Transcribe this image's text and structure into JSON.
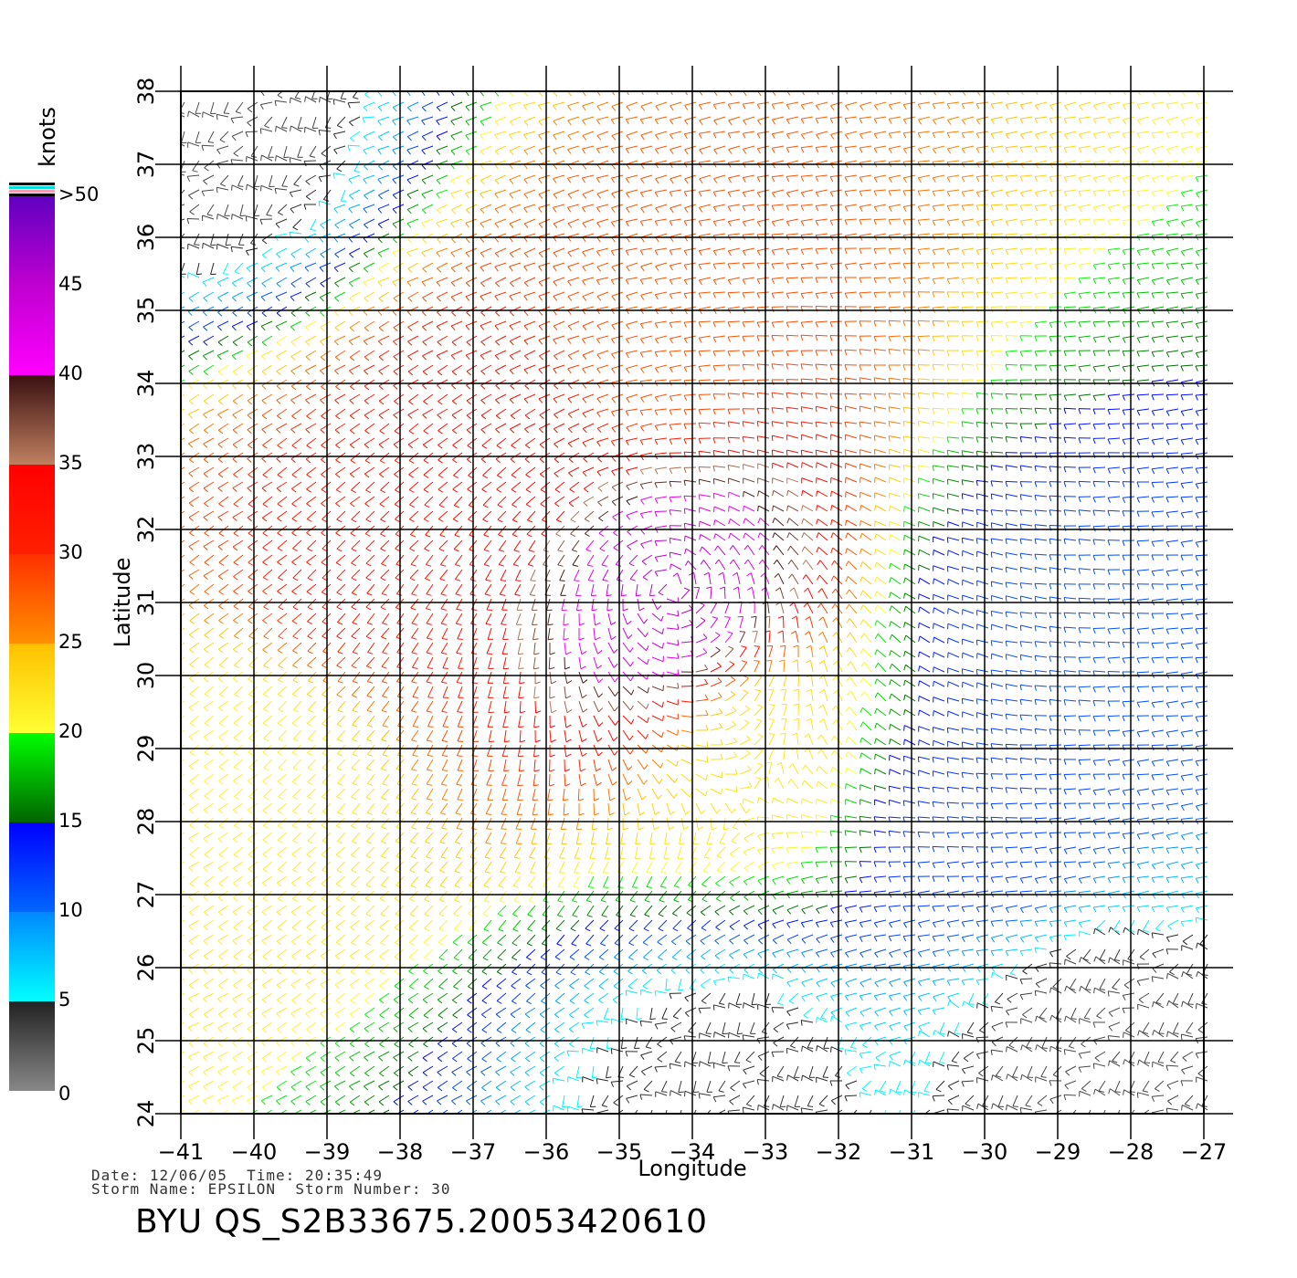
{
  "chart_data": {
    "type": "wind-barb map",
    "title": "",
    "xlabel": "Longitude",
    "ylabel": "Latitude",
    "xlim": [
      -41,
      -27
    ],
    "ylim": [
      24,
      38
    ],
    "x_ticks": [
      "-41",
      "-40",
      "-39",
      "-38",
      "-37",
      "-36",
      "-35",
      "-34",
      "-33",
      "-32",
      "-31",
      "-30",
      "-29",
      "-28",
      "-27"
    ],
    "y_ticks": [
      "24",
      "25",
      "26",
      "27",
      "28",
      "29",
      "30",
      "31",
      "32",
      "33",
      "34",
      "35",
      "36",
      "37",
      "38"
    ],
    "grid": true,
    "colorbar": {
      "unit": "knots",
      "labels": [
        "0",
        "5",
        "10",
        "15",
        "20",
        "25",
        "30",
        "35",
        "40",
        "45",
        ">50"
      ],
      "bins": [
        {
          "from": 0,
          "to": 5,
          "colors": [
            "#888888",
            "#222222"
          ]
        },
        {
          "from": 5,
          "to": 10,
          "colors": [
            "#00ffff",
            "#0088ff"
          ]
        },
        {
          "from": 10,
          "to": 15,
          "colors": [
            "#0066ff",
            "#0000ff"
          ]
        },
        {
          "from": 15,
          "to": 20,
          "colors": [
            "#006400",
            "#00ff00"
          ]
        },
        {
          "from": 20,
          "to": 25,
          "colors": [
            "#ffff33",
            "#ffc000"
          ]
        },
        {
          "from": 25,
          "to": 30,
          "colors": [
            "#ff9000",
            "#ff3000"
          ]
        },
        {
          "from": 30,
          "to": 35,
          "colors": [
            "#ff2000",
            "#ff0000"
          ]
        },
        {
          "from": 35,
          "to": 40,
          "colors": [
            "#c08060",
            "#3a1010"
          ]
        },
        {
          "from": 40,
          "to": 45,
          "colors": [
            "#ff00ff",
            "#c000d0"
          ]
        },
        {
          "from": 45,
          "to": 50,
          "colors": [
            "#c000d0",
            "#6000c0"
          ]
        }
      ]
    },
    "storm_center": {
      "lon": -34.3,
      "lat": 31.2
    },
    "wind_field": [
      {
        "lon": -34.3,
        "lat": 31.2,
        "speed_kt": 45,
        "type": "cyclonic core"
      },
      {
        "lon": -36.5,
        "lat": 33.0,
        "speed_kt": 33,
        "type": "storm ring"
      },
      {
        "lon": -38.5,
        "lat": 31.5,
        "speed_kt": 31,
        "type": "storm ring"
      },
      {
        "lon": -34.5,
        "lat": 34.5,
        "speed_kt": 28,
        "type": "storm ring"
      },
      {
        "lon": -33.0,
        "lat": 28.9,
        "speed_kt": 22,
        "type": "outer band"
      },
      {
        "lon": -40.0,
        "lat": 29.0,
        "speed_kt": 21,
        "type": "outer band"
      },
      {
        "lon": -30.0,
        "lat": 28.0,
        "speed_kt": 12,
        "type": "easterly flow"
      },
      {
        "lon": -29.0,
        "lat": 30.5,
        "speed_kt": 11,
        "type": "easterly flow"
      },
      {
        "lon": -28.5,
        "lat": 25.0,
        "speed_kt": 3,
        "type": "calm"
      },
      {
        "lon": -33.5,
        "lat": 24.5,
        "speed_kt": 4,
        "type": "calm"
      },
      {
        "lon": -40.5,
        "lat": 37.5,
        "speed_kt": 3,
        "type": "calm"
      }
    ]
  },
  "footer": {
    "date_label": "Date:",
    "date": "12/06/05",
    "time_label": "Time:",
    "time": "20:35:49",
    "storm_name_label": "Storm Name:",
    "storm_name": "EPSILON",
    "storm_number_label": "Storm Number:",
    "storm_number": "30",
    "file_id": "BYU  QS_S2B33675.20053420610"
  }
}
